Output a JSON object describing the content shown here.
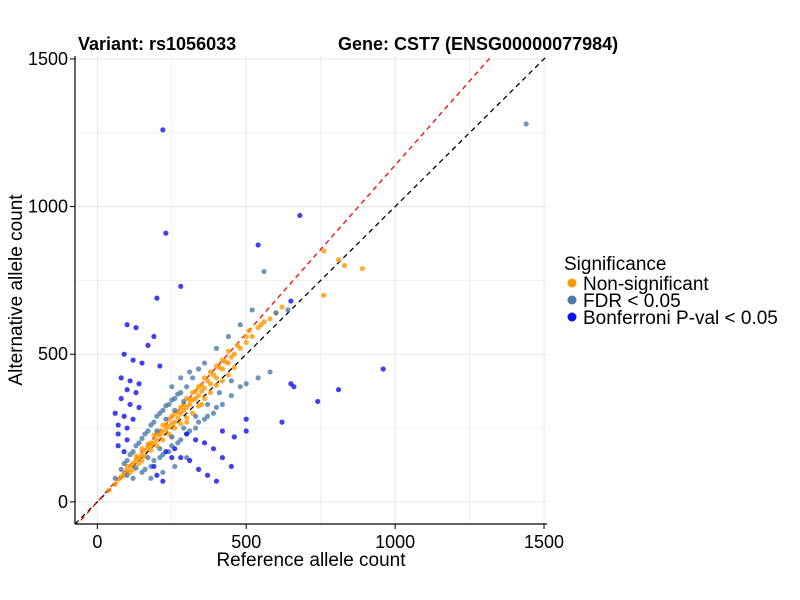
{
  "chart_data": {
    "type": "scatter",
    "title_left": "Variant: rs1056033",
    "title_right": "Gene: CST7 (ENSG00000077984)",
    "xlabel": "Reference allele count",
    "ylabel": "Alternative allele count",
    "xlim": [
      -75,
      1510
    ],
    "ylim": [
      -75,
      1510
    ],
    "xticks": [
      0,
      500,
      1000,
      1500
    ],
    "yticks": [
      0,
      500,
      1000,
      1500
    ],
    "xtick_labels": [
      "0",
      "500",
      "1000",
      "1500"
    ],
    "ytick_labels": [
      "0",
      "500",
      "1000",
      "1500"
    ],
    "grid": true,
    "reference_lines": [
      {
        "name": "identity",
        "slope": 1.0,
        "color": "#000000",
        "style": "dashed"
      },
      {
        "name": "allelic-ratio",
        "slope": 1.14,
        "color": "#ff0000",
        "style": "dashed"
      }
    ],
    "legend": {
      "title": "Significance",
      "placement": "right",
      "entries": [
        {
          "label": "Non-significant",
          "color": "#ff9900"
        },
        {
          "label": "FDR < 0.05",
          "color": "#4a7aaa"
        },
        {
          "label": "Bonferroni P-val < 0.05",
          "color": "#1010ee"
        }
      ]
    },
    "series": [
      {
        "name": "Non-significant",
        "color": "#ff9900",
        "points": [
          [
            40,
            40
          ],
          [
            60,
            60
          ],
          [
            70,
            75
          ],
          [
            80,
            85
          ],
          [
            90,
            95
          ],
          [
            100,
            105
          ],
          [
            110,
            120
          ],
          [
            120,
            130
          ],
          [
            130,
            140
          ],
          [
            140,
            150
          ],
          [
            150,
            160
          ],
          [
            160,
            175
          ],
          [
            170,
            185
          ],
          [
            180,
            190
          ],
          [
            190,
            200
          ],
          [
            200,
            210
          ],
          [
            210,
            225
          ],
          [
            220,
            235
          ],
          [
            230,
            245
          ],
          [
            240,
            255
          ],
          [
            250,
            265
          ],
          [
            260,
            270
          ],
          [
            270,
            285
          ],
          [
            280,
            300
          ],
          [
            290,
            310
          ],
          [
            300,
            320
          ],
          [
            310,
            330
          ],
          [
            320,
            345
          ],
          [
            330,
            350
          ],
          [
            340,
            360
          ],
          [
            350,
            375
          ],
          [
            360,
            385
          ],
          [
            380,
            400
          ],
          [
            400,
            420
          ],
          [
            420,
            450
          ],
          [
            440,
            470
          ],
          [
            460,
            500
          ],
          [
            480,
            520
          ],
          [
            500,
            540
          ],
          [
            520,
            560
          ],
          [
            540,
            590
          ],
          [
            560,
            610
          ],
          [
            580,
            620
          ],
          [
            600,
            640
          ],
          [
            620,
            660
          ],
          [
            120,
            110
          ],
          [
            140,
            130
          ],
          [
            160,
            155
          ],
          [
            180,
            175
          ],
          [
            200,
            190
          ],
          [
            220,
            210
          ],
          [
            240,
            230
          ],
          [
            260,
            250
          ],
          [
            280,
            265
          ],
          [
            300,
            285
          ],
          [
            320,
            300
          ],
          [
            340,
            325
          ],
          [
            360,
            350
          ],
          [
            380,
            370
          ],
          [
            400,
            395
          ],
          [
            420,
            410
          ],
          [
            440,
            430
          ],
          [
            460,
            455
          ],
          [
            100,
            120
          ],
          [
            130,
            155
          ],
          [
            150,
            180
          ],
          [
            170,
            195
          ],
          [
            190,
            225
          ],
          [
            210,
            240
          ],
          [
            230,
            260
          ],
          [
            250,
            290
          ],
          [
            270,
            305
          ],
          [
            290,
            330
          ],
          [
            310,
            345
          ],
          [
            330,
            375
          ],
          [
            350,
            395
          ],
          [
            370,
            410
          ],
          [
            390,
            430
          ],
          [
            410,
            455
          ],
          [
            430,
            475
          ],
          [
            450,
            490
          ],
          [
            200,
            230
          ],
          [
            240,
            280
          ],
          [
            280,
            320
          ],
          [
            320,
            370
          ],
          [
            360,
            420
          ],
          [
            400,
            460
          ],
          [
            440,
            510
          ],
          [
            500,
            560
          ],
          [
            760,
            850
          ],
          [
            810,
            820
          ],
          [
            830,
            800
          ],
          [
            890,
            790
          ],
          [
            760,
            700
          ],
          [
            250,
            220
          ],
          [
            300,
            270
          ],
          [
            350,
            330
          ],
          [
            150,
            140
          ],
          [
            110,
            100
          ],
          [
            90,
            90
          ],
          [
            180,
            200
          ],
          [
            220,
            260
          ],
          [
            260,
            300
          ],
          [
            300,
            350
          ],
          [
            340,
            390
          ],
          [
            380,
            440
          ],
          [
            420,
            480
          ],
          [
            470,
            530
          ],
          [
            510,
            580
          ],
          [
            550,
            600
          ]
        ]
      },
      {
        "name": "FDR < 0.05",
        "color": "#4a7aaa",
        "points": [
          [
            60,
            80
          ],
          [
            80,
            110
          ],
          [
            100,
            140
          ],
          [
            120,
            170
          ],
          [
            140,
            200
          ],
          [
            160,
            230
          ],
          [
            180,
            260
          ],
          [
            200,
            290
          ],
          [
            220,
            310
          ],
          [
            240,
            330
          ],
          [
            260,
            350
          ],
          [
            280,
            370
          ],
          [
            300,
            390
          ],
          [
            320,
            420
          ],
          [
            340,
            450
          ],
          [
            360,
            470
          ],
          [
            400,
            520
          ],
          [
            440,
            560
          ],
          [
            480,
            600
          ],
          [
            520,
            650
          ],
          [
            560,
            780
          ],
          [
            600,
            640
          ],
          [
            640,
            650
          ],
          [
            120,
            80
          ],
          [
            150,
            100
          ],
          [
            180,
            120
          ],
          [
            210,
            150
          ],
          [
            240,
            170
          ],
          [
            270,
            200
          ],
          [
            300,
            230
          ],
          [
            330,
            250
          ],
          [
            360,
            280
          ],
          [
            390,
            300
          ],
          [
            420,
            330
          ],
          [
            450,
            360
          ],
          [
            480,
            390
          ],
          [
            90,
            130
          ],
          [
            110,
            160
          ],
          [
            130,
            190
          ],
          [
            150,
            215
          ],
          [
            170,
            240
          ],
          [
            190,
            270
          ],
          [
            210,
            300
          ],
          [
            230,
            325
          ],
          [
            250,
            345
          ],
          [
            270,
            365
          ],
          [
            160,
            110
          ],
          [
            190,
            140
          ],
          [
            220,
            160
          ],
          [
            250,
            190
          ],
          [
            280,
            210
          ],
          [
            310,
            240
          ],
          [
            340,
            270
          ],
          [
            370,
            290
          ],
          [
            400,
            320
          ],
          [
            500,
            400
          ],
          [
            540,
            420
          ],
          [
            580,
            440
          ],
          [
            1440,
            1280
          ],
          [
            200,
            240
          ],
          [
            230,
            280
          ],
          [
            260,
            310
          ],
          [
            290,
            340
          ],
          [
            100,
            90
          ],
          [
            130,
            115
          ],
          [
            170,
            150
          ],
          [
            210,
            180
          ],
          [
            250,
            220
          ],
          [
            290,
            250
          ],
          [
            330,
            290
          ],
          [
            370,
            330
          ],
          [
            410,
            370
          ],
          [
            450,
            410
          ],
          [
            310,
            440
          ],
          [
            280,
            420
          ],
          [
            250,
            390
          ],
          [
            180,
            80
          ],
          [
            220,
            100
          ],
          [
            260,
            120
          ],
          [
            300,
            150
          ]
        ]
      },
      {
        "name": "Bonferroni P-val < 0.05",
        "color": "#1010ee",
        "points": [
          [
            220,
            1260
          ],
          [
            680,
            970
          ],
          [
            540,
            870
          ],
          [
            230,
            910
          ],
          [
            200,
            690
          ],
          [
            280,
            730
          ],
          [
            650,
            680
          ],
          [
            100,
            600
          ],
          [
            130,
            590
          ],
          [
            190,
            560
          ],
          [
            170,
            530
          ],
          [
            90,
            500
          ],
          [
            120,
            480
          ],
          [
            150,
            470
          ],
          [
            210,
            460
          ],
          [
            80,
            420
          ],
          [
            110,
            410
          ],
          [
            140,
            400
          ],
          [
            100,
            380
          ],
          [
            130,
            370
          ],
          [
            80,
            350
          ],
          [
            110,
            330
          ],
          [
            140,
            320
          ],
          [
            60,
            300
          ],
          [
            90,
            290
          ],
          [
            120,
            280
          ],
          [
            70,
            260
          ],
          [
            100,
            250
          ],
          [
            70,
            230
          ],
          [
            100,
            210
          ],
          [
            70,
            190
          ],
          [
            90,
            170
          ],
          [
            300,
            230
          ],
          [
            330,
            210
          ],
          [
            360,
            200
          ],
          [
            390,
            180
          ],
          [
            420,
            150
          ],
          [
            450,
            120
          ],
          [
            260,
            180
          ],
          [
            280,
            150
          ],
          [
            310,
            140
          ],
          [
            340,
            110
          ],
          [
            370,
            90
          ],
          [
            400,
            70
          ],
          [
            420,
            240
          ],
          [
            460,
            220
          ],
          [
            500,
            280
          ],
          [
            650,
            400
          ],
          [
            660,
            390
          ],
          [
            740,
            340
          ],
          [
            810,
            380
          ],
          [
            960,
            450
          ],
          [
            620,
            270
          ],
          [
            500,
            240
          ],
          [
            230,
            170
          ],
          [
            250,
            150
          ],
          [
            190,
            120
          ],
          [
            200,
            90
          ],
          [
            220,
            70
          ]
        ]
      }
    ]
  }
}
